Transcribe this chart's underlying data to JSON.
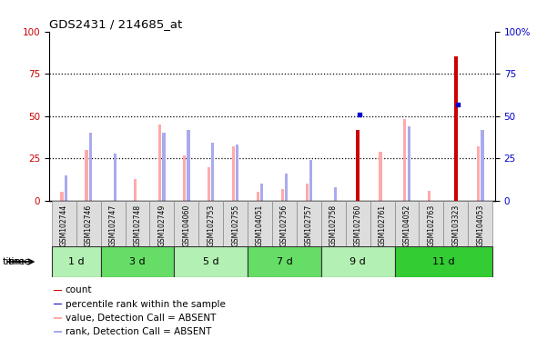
{
  "title": "GDS2431 / 214685_at",
  "samples": [
    "GSM102744",
    "GSM102746",
    "GSM102747",
    "GSM102748",
    "GSM102749",
    "GSM104060",
    "GSM102753",
    "GSM102755",
    "GSM104051",
    "GSM102756",
    "GSM102757",
    "GSM102758",
    "GSM102760",
    "GSM102761",
    "GSM104052",
    "GSM102763",
    "GSM103323",
    "GSM104053"
  ],
  "time_groups": [
    {
      "label": "1 d",
      "start": 0,
      "end": 2,
      "color": "#b3f0b3"
    },
    {
      "label": "3 d",
      "start": 2,
      "end": 5,
      "color": "#66dd66"
    },
    {
      "label": "5 d",
      "start": 5,
      "end": 8,
      "color": "#b3f0b3"
    },
    {
      "label": "7 d",
      "start": 8,
      "end": 11,
      "color": "#66dd66"
    },
    {
      "label": "9 d",
      "start": 11,
      "end": 14,
      "color": "#b3f0b3"
    },
    {
      "label": "11 d",
      "start": 14,
      "end": 18,
      "color": "#33cc33"
    }
  ],
  "count_values": [
    0,
    0,
    0,
    0,
    0,
    0,
    0,
    0,
    0,
    0,
    0,
    0,
    42,
    0,
    0,
    0,
    85,
    0
  ],
  "percentile_values": [
    0,
    0,
    0,
    0,
    0,
    0,
    0,
    0,
    0,
    0,
    0,
    0,
    51,
    0,
    0,
    0,
    57,
    0
  ],
  "absent_value": [
    5,
    30,
    0,
    13,
    45,
    27,
    20,
    32,
    5,
    7,
    10,
    0,
    0,
    29,
    48,
    6,
    0,
    32
  ],
  "absent_rank": [
    15,
    40,
    28,
    0,
    40,
    42,
    34,
    33,
    10,
    16,
    24,
    8,
    0,
    0,
    44,
    0,
    0,
    42
  ],
  "count_color": "#cc0000",
  "percentile_color": "#0000cc",
  "absent_value_color": "#ffaaaa",
  "absent_rank_color": "#aaaaee",
  "bg_color": "#ffffff",
  "left_axis_color": "#cc0000",
  "right_axis_color": "#0000cc",
  "cell_bg_color": "#dddddd",
  "cell_border_color": "#888888",
  "time_border_color": "#333333"
}
